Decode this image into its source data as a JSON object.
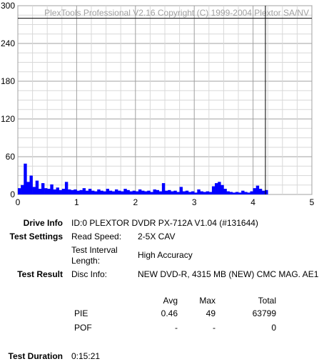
{
  "chart_data": {
    "type": "area",
    "title": "",
    "watermark": "PlexTools Professional V2.16 Copyright (C) 1999-2004 Plextor SA/NV",
    "xlabel": "",
    "ylabel": "",
    "xlim": [
      0,
      5
    ],
    "ylim": [
      0,
      300
    ],
    "x_ticks": [
      "0",
      "1",
      "2",
      "3",
      "4",
      "5"
    ],
    "y_ticks": [
      "0",
      "60",
      "120",
      "180",
      "240",
      "300"
    ],
    "grid": true,
    "series_color": "#0000ff",
    "end_marker_x": 4.21,
    "max_line_y": 280,
    "series": [
      {
        "x": [
          0.0,
          0.05,
          0.1,
          0.15,
          0.2,
          0.25,
          0.3,
          0.35,
          0.4,
          0.45,
          0.5,
          0.55,
          0.6,
          0.65,
          0.7,
          0.75,
          0.8,
          0.85,
          0.9,
          0.95,
          1.0,
          1.05,
          1.1,
          1.15,
          1.2,
          1.25,
          1.3,
          1.35,
          1.4,
          1.45,
          1.5,
          1.55,
          1.6,
          1.65,
          1.7,
          1.75,
          1.8,
          1.85,
          1.9,
          1.95,
          2.0,
          2.05,
          2.1,
          2.15,
          2.2,
          2.25,
          2.3,
          2.35,
          2.4,
          2.45,
          2.5,
          2.55,
          2.6,
          2.65,
          2.7,
          2.75,
          2.8,
          2.85,
          2.9,
          2.95,
          3.0,
          3.05,
          3.1,
          3.15,
          3.2,
          3.25,
          3.3,
          3.35,
          3.4,
          3.45,
          3.5,
          3.55,
          3.6,
          3.65,
          3.7,
          3.75,
          3.8,
          3.85,
          3.9,
          3.95,
          4.0,
          4.05,
          4.1,
          4.15,
          4.2
        ],
        "values": [
          10,
          15,
          49,
          20,
          30,
          12,
          22,
          9,
          18,
          10,
          9,
          16,
          8,
          11,
          7,
          9,
          20,
          8,
          7,
          8,
          6,
          7,
          10,
          6,
          9,
          6,
          5,
          8,
          6,
          5,
          9,
          6,
          5,
          8,
          6,
          5,
          9,
          7,
          5,
          6,
          5,
          8,
          6,
          5,
          6,
          4,
          8,
          7,
          5,
          18,
          6,
          7,
          5,
          6,
          4,
          12,
          5,
          6,
          4,
          5,
          3,
          8,
          5,
          4,
          5,
          4,
          13,
          18,
          20,
          15,
          9,
          5,
          4,
          3,
          4,
          3,
          6,
          4,
          3,
          5,
          10,
          14,
          9,
          6,
          7
        ]
      }
    ]
  },
  "info": {
    "drive_info_label": "Drive Info",
    "drive_info_value": "ID:0 PLEXTOR DVDR PX-712A V1.04 (#131644)",
    "test_settings_label": "Test Settings",
    "read_speed_label": "Read Speed:",
    "read_speed_value": "2-5X CAV",
    "test_interval_label_1": "Test Interval",
    "test_interval_label_2": "Length:",
    "test_interval_value": "High Accuracy",
    "test_result_label": "Test Result",
    "disc_info_label": "Disc Info:",
    "disc_info_value": "NEW DVD-R, 4315 MB (NEW) CMC MAG. AE1",
    "col_avg": "Avg",
    "col_max": "Max",
    "col_total": "Total",
    "pie_label": "PIE",
    "pie_avg": "0.46",
    "pie_max": "49",
    "pie_total": "63799",
    "pof_label": "POF",
    "pof_avg": "-",
    "pof_max": "-",
    "pof_total": "0",
    "test_duration_label": "Test Duration",
    "test_duration_value": "0:15:21"
  }
}
